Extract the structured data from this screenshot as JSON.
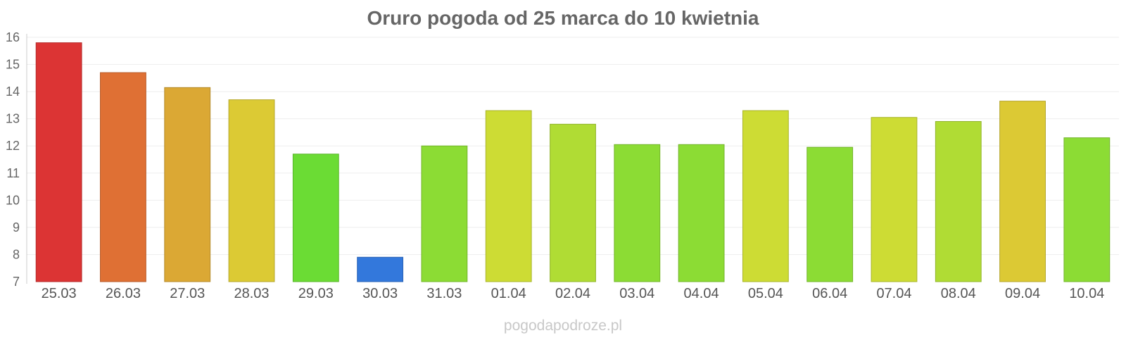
{
  "chart_data": {
    "type": "bar",
    "title": "Oruro pogoda od 25 marca do 10 kwietnia",
    "xlabel": "",
    "ylabel": "",
    "categories": [
      "25.03",
      "26.03",
      "27.03",
      "28.03",
      "29.03",
      "30.03",
      "31.03",
      "01.04",
      "02.04",
      "03.04",
      "04.04",
      "05.04",
      "06.04",
      "07.04",
      "08.04",
      "09.04",
      "10.04"
    ],
    "values": [
      15.8,
      14.7,
      14.15,
      13.7,
      11.7,
      7.9,
      12.0,
      13.3,
      12.8,
      12.05,
      12.05,
      13.3,
      11.95,
      13.05,
      12.9,
      13.65,
      12.3
    ],
    "colors": [
      "#dc3434",
      "#df7034",
      "#dba834",
      "#dcca34",
      "#6bdc34",
      "#3378dc",
      "#8cdc34",
      "#cddc34",
      "#b0dc34",
      "#8cdc34",
      "#8cdc34",
      "#cddc34",
      "#8cdc34",
      "#cddc34",
      "#b0dc34",
      "#dcc934",
      "#8cdc34"
    ],
    "yticks": [
      "7",
      "8",
      "9",
      "10",
      "11",
      "12",
      "13",
      "14",
      "15",
      "16"
    ],
    "ylim": [
      7,
      16
    ],
    "grid": true,
    "legend": "none"
  },
  "watermark": "pogodapodroze.pl"
}
